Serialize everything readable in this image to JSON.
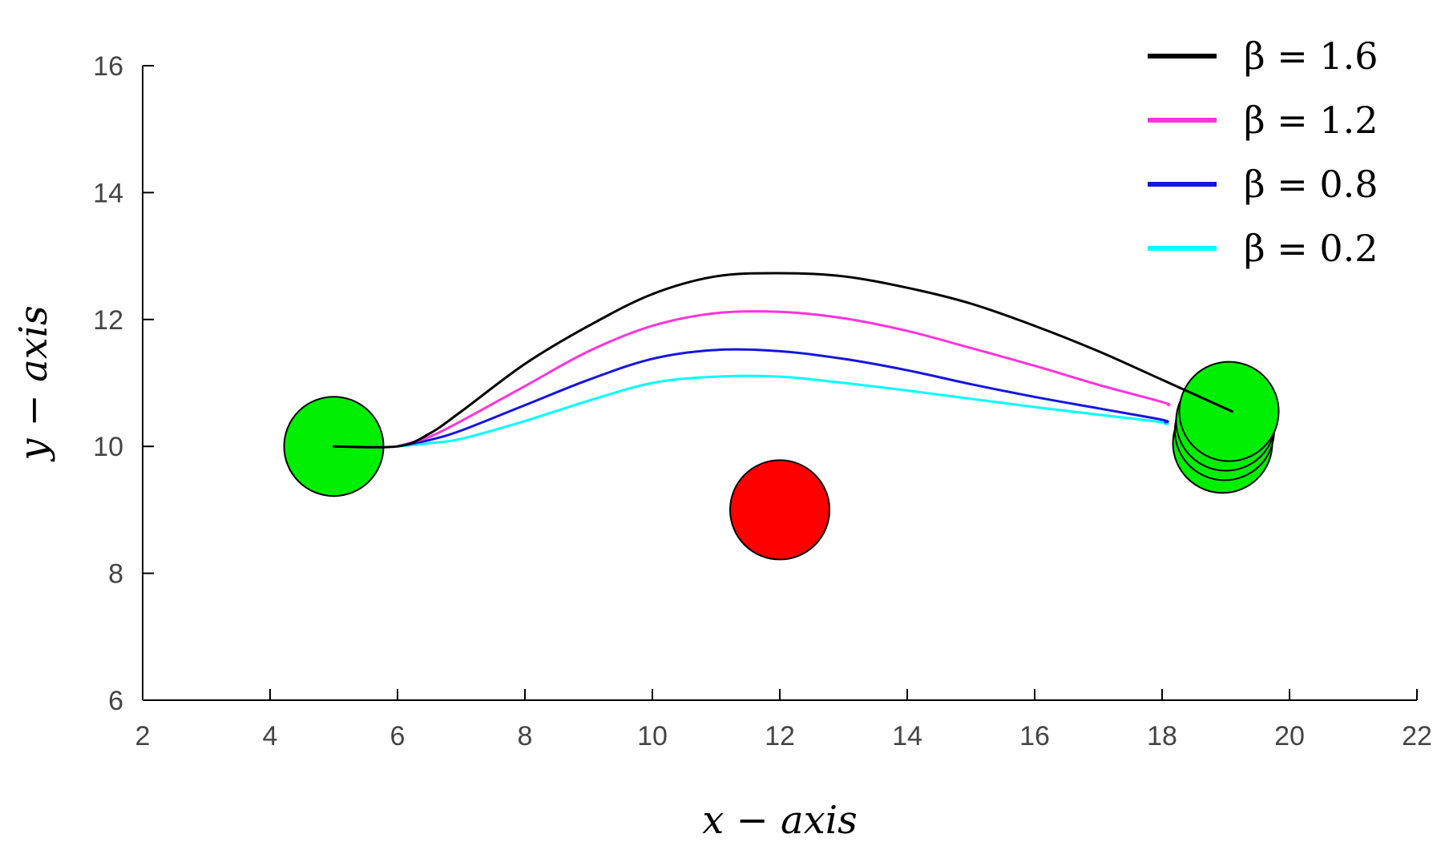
{
  "chart_data": {
    "type": "line",
    "title": "",
    "xlabel": "x − axis",
    "ylabel": "y − axis",
    "xlim": [
      2,
      22
    ],
    "ylim": [
      6,
      16
    ],
    "x_ticks": [
      2,
      4,
      6,
      8,
      10,
      12,
      14,
      16,
      18,
      20,
      22
    ],
    "y_ticks": [
      6,
      8,
      10,
      12,
      14,
      16
    ],
    "grid": false,
    "legend_position": "top-right",
    "series": [
      {
        "name": "β = 1.6",
        "color": "#000000",
        "x": [
          5,
          6,
          6.5,
          7,
          8,
          9,
          10,
          11,
          12,
          13,
          14,
          15,
          16,
          17,
          18,
          19.1
        ],
        "y": [
          10.0,
          10.0,
          10.2,
          10.55,
          11.3,
          11.9,
          12.4,
          12.68,
          12.73,
          12.68,
          12.5,
          12.25,
          11.9,
          11.5,
          11.05,
          10.55
        ]
      },
      {
        "name": "β = 1.2",
        "color": "#ff33dd",
        "x": [
          6,
          6.5,
          7,
          8,
          9,
          10,
          11,
          12,
          13,
          14,
          15,
          16,
          17,
          18,
          18.1
        ],
        "y": [
          10.0,
          10.15,
          10.4,
          10.95,
          11.5,
          11.9,
          12.1,
          12.12,
          12.02,
          11.82,
          11.55,
          11.27,
          10.97,
          10.7,
          10.65
        ]
      },
      {
        "name": "β = 0.8",
        "color": "#1515e0",
        "x": [
          6,
          6.5,
          7,
          8,
          9,
          10,
          11,
          12,
          13,
          14,
          15,
          16,
          17,
          18,
          18.05
        ],
        "y": [
          10.0,
          10.1,
          10.25,
          10.65,
          11.05,
          11.38,
          11.52,
          11.5,
          11.38,
          11.2,
          10.98,
          10.78,
          10.6,
          10.42,
          10.38
        ]
      },
      {
        "name": "β = 0.2",
        "color": "#00ffff",
        "x": [
          6,
          6.5,
          7,
          8,
          9,
          10,
          11,
          12,
          13,
          14,
          15,
          16,
          17,
          18,
          18.05
        ],
        "y": [
          10.0,
          10.05,
          10.12,
          10.4,
          10.72,
          11.0,
          11.1,
          11.1,
          11.0,
          10.88,
          10.75,
          10.62,
          10.5,
          10.38,
          10.35
        ]
      }
    ],
    "circles": [
      {
        "role": "start",
        "x": 5.0,
        "y": 10.0,
        "radius": 1.0,
        "color": "#00ee00"
      },
      {
        "role": "obstacle",
        "x": 12.0,
        "y": 9.0,
        "radius": 1.0,
        "color": "#ff0000"
      },
      {
        "role": "goal",
        "x": 18.95,
        "y": 10.05,
        "radius": 1.0,
        "color": "#00ee00"
      },
      {
        "role": "goal",
        "x": 18.98,
        "y": 10.25,
        "radius": 1.0,
        "color": "#00ee00"
      },
      {
        "role": "goal",
        "x": 19.0,
        "y": 10.4,
        "radius": 1.0,
        "color": "#00ee00"
      },
      {
        "role": "goal",
        "x": 19.05,
        "y": 10.55,
        "radius": 1.0,
        "color": "#00ee00"
      }
    ]
  }
}
